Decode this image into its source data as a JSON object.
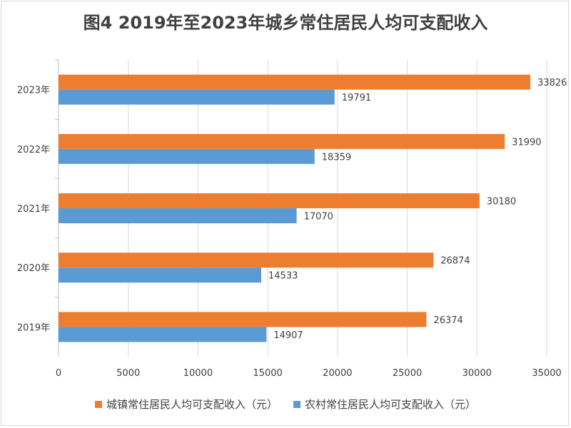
{
  "chart_data": {
    "type": "bar",
    "orientation": "horizontal",
    "title": "图4  2019年至2023年城乡常住居民人均可支配收入",
    "categories": [
      "2019年",
      "2020年",
      "2021年",
      "2022年",
      "2023年"
    ],
    "series": [
      {
        "name": "城镇常住居民人均可支配收入（元）",
        "color": "#ED7D31",
        "values": [
          26374,
          26874,
          30180,
          31990,
          33826
        ]
      },
      {
        "name": "农村常住居民人均可支配收入（元）",
        "color": "#5B9BD5",
        "values": [
          14907,
          14533,
          17070,
          18359,
          19791
        ]
      }
    ],
    "xlim": [
      0,
      35000
    ],
    "xticks": [
      "0",
      "5000",
      "10000",
      "15000",
      "20000",
      "25000",
      "30000",
      "35000"
    ],
    "grid": true,
    "legend": "bottom"
  }
}
